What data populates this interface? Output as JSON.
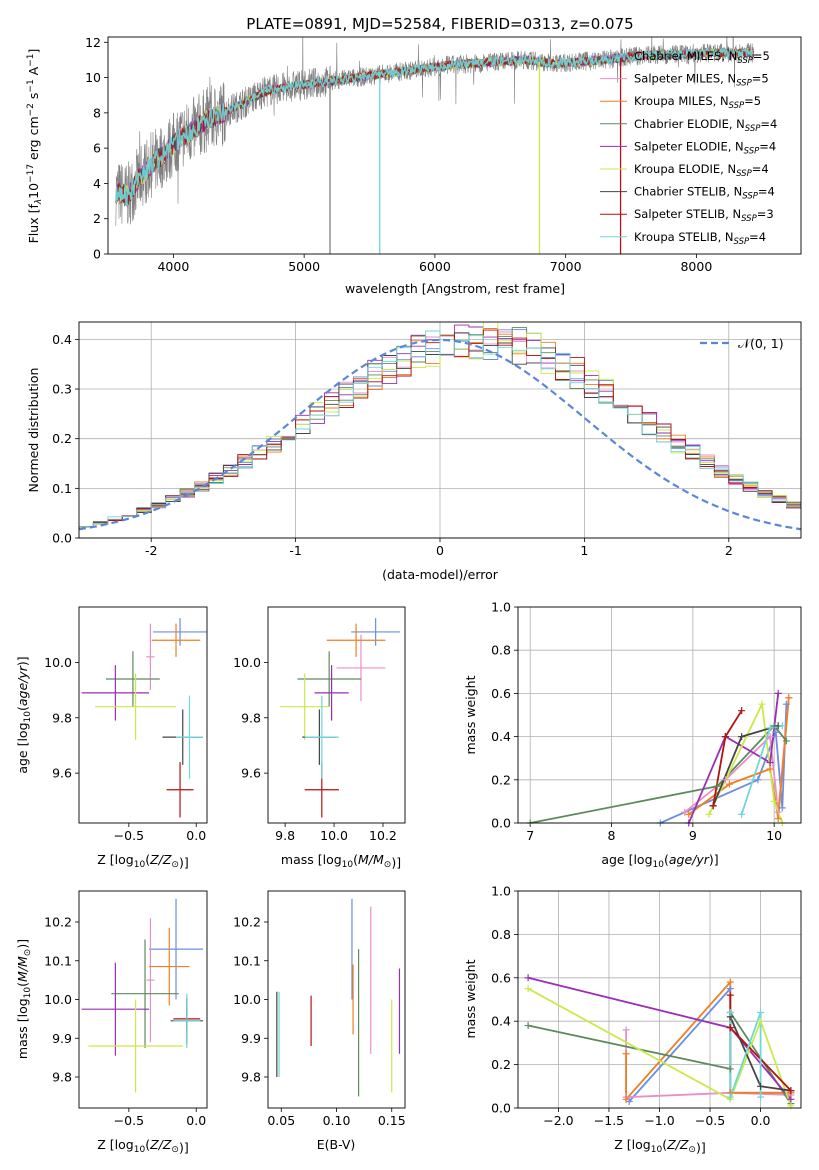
{
  "figure": {
    "title": "PLATE=0891, MJD=52584, FIBERID=0313, z=0.075"
  },
  "colors": {
    "chabrier_miles": "#6b8ee0",
    "salpeter_miles": "#e98fc8",
    "kroupa_miles": "#ef7f22",
    "chabrier_elodie": "#5e8a5e",
    "salpeter_elodie": "#9a2fb5",
    "kroupa_elodie": "#c9ea47",
    "chabrier_stelib": "#444444",
    "salpeter_stelib": "#b31212",
    "kroupa_stelib": "#6fd6dc",
    "observed": "#808080",
    "normal": "#5b86d9"
  },
  "chart_data": [
    {
      "type": "line",
      "xlabel": "wavelength [Angstrom, rest frame]",
      "ylabel": "Flux [f_λ10^-17 erg cm^-2 s^-1 A^-1]",
      "xlim": [
        3500,
        8800
      ],
      "ylim": [
        0,
        12.3
      ],
      "xticks": [
        4000,
        5000,
        6000,
        7000,
        8000
      ],
      "yticks": [
        0,
        2,
        4,
        6,
        8,
        10,
        12
      ],
      "grid": false,
      "legend": "top-right",
      "series": [
        {
          "name": "Chabrier MILES, N_SSP=5",
          "label_main": "Chabrier MILES, N",
          "label_sub": "SSP",
          "label_tail": "=5",
          "color_key": "chabrier_miles"
        },
        {
          "name": "Salpeter MILES, N_SSP=5",
          "label_main": "Salpeter MILES, N",
          "label_sub": "SSP",
          "label_tail": "=5",
          "color_key": "salpeter_miles"
        },
        {
          "name": "Kroupa MILES, N_SSP=5",
          "label_main": "Kroupa MILES, N",
          "label_sub": "SSP",
          "label_tail": "=5",
          "color_key": "kroupa_miles"
        },
        {
          "name": "Chabrier ELODIE, N_SSP=4",
          "label_main": "Chabrier ELODIE, N",
          "label_sub": "SSP",
          "label_tail": "=4",
          "color_key": "chabrier_elodie"
        },
        {
          "name": "Salpeter ELODIE, N_SSP=4",
          "label_main": "Salpeter ELODIE, N",
          "label_sub": "SSP",
          "label_tail": "=4",
          "color_key": "salpeter_elodie"
        },
        {
          "name": "Kroupa ELODIE, N_SSP=4",
          "label_main": "Kroupa ELODIE, N",
          "label_sub": "SSP",
          "label_tail": "=4",
          "color_key": "kroupa_elodie"
        },
        {
          "name": "Chabrier STELIB, N_SSP=4",
          "label_main": "Chabrier STELIB, N",
          "label_sub": "SSP",
          "label_tail": "=4",
          "color_key": "chabrier_stelib"
        },
        {
          "name": "Salpeter STELIB, N_SSP=3",
          "label_main": "Salpeter STELIB, N",
          "label_sub": "SSP",
          "label_tail": "=3",
          "color_key": "salpeter_stelib"
        },
        {
          "name": "Kroupa STELIB, N_SSP=4",
          "label_main": "Kroupa STELIB, N",
          "label_sub": "SSP",
          "label_tail": "=4",
          "color_key": "kroupa_stelib"
        }
      ],
      "continuum_x": [
        3560,
        3650,
        3750,
        3850,
        3950,
        4050,
        4150,
        4250,
        4350,
        4500,
        4700,
        4900,
        5100,
        5300,
        5500,
        5700,
        5900,
        6100,
        6300,
        6500,
        6700,
        6900,
        7100,
        7300,
        7500,
        7700,
        7900,
        8100,
        8300,
        8440
      ],
      "continuum_y": [
        3.5,
        3.3,
        4.4,
        5.2,
        5.8,
        6.6,
        7.0,
        7.6,
        7.9,
        8.4,
        9.2,
        9.5,
        9.7,
        9.9,
        10.1,
        10.3,
        10.5,
        10.7,
        10.8,
        10.9,
        11.0,
        10.8,
        10.9,
        11.0,
        11.2,
        11.3,
        11.3,
        11.4,
        11.4,
        11.4
      ]
    },
    {
      "type": "line",
      "xlabel": "(data-model)/error",
      "ylabel": "Normed distribution",
      "xlim": [
        -2.5,
        2.5
      ],
      "ylim": [
        0,
        0.435
      ],
      "xticks": [
        -2,
        -1,
        0,
        1,
        2
      ],
      "yticks": [
        0.0,
        0.1,
        0.2,
        0.3,
        0.4
      ],
      "grid": true,
      "legend": "top-right",
      "legend_label": "𝒩(0, 1)",
      "bin_width": 0.1,
      "base_density": [
        0.025,
        0.031,
        0.039,
        0.047,
        0.056,
        0.066,
        0.078,
        0.091,
        0.105,
        0.12,
        0.136,
        0.153,
        0.171,
        0.19,
        0.209,
        0.229,
        0.25,
        0.27,
        0.29,
        0.309,
        0.328,
        0.345,
        0.36,
        0.373,
        0.384,
        0.392,
        0.397,
        0.399,
        0.398,
        0.394,
        0.386,
        0.376,
        0.363,
        0.348,
        0.331,
        0.313,
        0.294,
        0.273,
        0.252,
        0.231,
        0.211,
        0.19,
        0.171,
        0.153,
        0.135,
        0.119,
        0.104,
        0.09,
        0.078,
        0.066
      ]
    },
    {
      "type": "scatter",
      "xlabel": "Z [log10(Z/Z⊙)]",
      "ylabel": "age [log10(age/yr)]",
      "xlim": [
        -0.87,
        0.08
      ],
      "ylim": [
        9.42,
        10.2
      ],
      "xticks": [
        -0.5,
        0.0
      ],
      "yticks": [
        9.6,
        9.8,
        10.0
      ],
      "grid": false,
      "points": [
        {
          "x": -0.12,
          "xerr": 0.2,
          "y": 10.11,
          "yerr": 0.05,
          "color_key": "chabrier_miles"
        },
        {
          "x": -0.34,
          "xerr": 0.03,
          "y": 10.02,
          "yerr": 0.12,
          "color_key": "salpeter_miles"
        },
        {
          "x": -0.15,
          "xerr": 0.18,
          "y": 10.08,
          "yerr": 0.06,
          "color_key": "kroupa_miles"
        },
        {
          "x": -0.47,
          "xerr": 0.2,
          "y": 9.94,
          "yerr": 0.1,
          "color_key": "chabrier_elodie"
        },
        {
          "x": -0.6,
          "xerr": 0.25,
          "y": 9.89,
          "yerr": 0.1,
          "color_key": "salpeter_elodie"
        },
        {
          "x": -0.45,
          "xerr": 0.3,
          "y": 9.84,
          "yerr": 0.12,
          "color_key": "kroupa_elodie"
        },
        {
          "x": -0.1,
          "xerr": 0.15,
          "y": 9.73,
          "yerr": 0.1,
          "color_key": "chabrier_stelib"
        },
        {
          "x": -0.12,
          "xerr": 0.1,
          "y": 9.54,
          "yerr": 0.1,
          "color_key": "salpeter_stelib"
        },
        {
          "x": -0.05,
          "xerr": 0.1,
          "y": 9.73,
          "yerr": 0.15,
          "color_key": "kroupa_stelib"
        }
      ]
    },
    {
      "type": "scatter",
      "xlabel": "mass [log10(M/M⊙)]",
      "ylabel": "",
      "xlim": [
        9.73,
        10.29
      ],
      "ylim": [
        9.42,
        10.2
      ],
      "xticks": [
        9.8,
        10.0,
        10.2
      ],
      "yticks": [
        9.6,
        9.8,
        10.0
      ],
      "grid": false,
      "points": [
        {
          "x": 10.17,
          "xerr": 0.1,
          "y": 10.11,
          "yerr": 0.05,
          "color_key": "chabrier_miles"
        },
        {
          "x": 10.11,
          "xerr": 0.1,
          "y": 9.98,
          "yerr": 0.12,
          "color_key": "salpeter_miles"
        },
        {
          "x": 10.09,
          "xerr": 0.12,
          "y": 10.08,
          "yerr": 0.06,
          "color_key": "kroupa_miles"
        },
        {
          "x": 9.98,
          "xerr": 0.13,
          "y": 9.94,
          "yerr": 0.1,
          "color_key": "chabrier_elodie"
        },
        {
          "x": 9.99,
          "xerr": 0.07,
          "y": 9.89,
          "yerr": 0.1,
          "color_key": "salpeter_elodie"
        },
        {
          "x": 9.88,
          "xerr": 0.1,
          "y": 9.84,
          "yerr": 0.12,
          "color_key": "kroupa_elodie"
        },
        {
          "x": 9.94,
          "xerr": 0.07,
          "y": 9.73,
          "yerr": 0.1,
          "color_key": "chabrier_stelib"
        },
        {
          "x": 9.95,
          "xerr": 0.07,
          "y": 9.54,
          "yerr": 0.1,
          "color_key": "salpeter_stelib"
        },
        {
          "x": 9.95,
          "xerr": 0.07,
          "y": 9.73,
          "yerr": 0.15,
          "color_key": "kroupa_stelib"
        }
      ]
    },
    {
      "type": "line",
      "xlabel": "age [log10(age/yr)]",
      "ylabel": "mass weight",
      "xlim": [
        6.85,
        10.33
      ],
      "ylim": [
        0,
        1.0
      ],
      "xticks": [
        7,
        8,
        9,
        10
      ],
      "yticks": [
        0.0,
        0.2,
        0.4,
        0.6,
        0.8,
        1.0
      ],
      "grid": true,
      "series": [
        {
          "color_key": "chabrier_miles",
          "x": [
            8.6,
            9.8,
            10.02,
            10.1,
            10.15
          ],
          "y": [
            0.0,
            0.2,
            0.42,
            0.07,
            0.55
          ]
        },
        {
          "color_key": "salpeter_miles",
          "x": [
            8.9,
            9.4,
            9.95,
            10.05,
            10.18
          ],
          "y": [
            0.05,
            0.2,
            0.4,
            0.05,
            0.58
          ]
        },
        {
          "color_key": "kroupa_miles",
          "x": [
            8.95,
            9.45,
            9.95,
            10.05,
            10.18
          ],
          "y": [
            0.04,
            0.18,
            0.25,
            0.02,
            0.58
          ]
        },
        {
          "color_key": "chabrier_elodie",
          "x": [
            7.0,
            9.3,
            10.0,
            10.15
          ],
          "y": [
            0.0,
            0.17,
            0.45,
            0.38
          ]
        },
        {
          "color_key": "salpeter_elodie",
          "x": [
            8.95,
            9.4,
            9.95,
            10.05
          ],
          "y": [
            0.0,
            0.4,
            0.28,
            0.6
          ]
        },
        {
          "color_key": "kroupa_elodie",
          "x": [
            9.2,
            9.85,
            10.0,
            10.1
          ],
          "y": [
            0.04,
            0.55,
            0.1,
            0.0
          ]
        },
        {
          "color_key": "chabrier_stelib",
          "x": [
            9.25,
            9.6,
            10.05
          ],
          "y": [
            0.08,
            0.4,
            0.45
          ]
        },
        {
          "color_key": "salpeter_stelib",
          "x": [
            9.25,
            9.4,
            9.6
          ],
          "y": [
            0.08,
            0.4,
            0.52
          ]
        },
        {
          "color_key": "kroupa_stelib",
          "x": [
            9.6,
            9.95,
            10.1
          ],
          "y": [
            0.04,
            0.44,
            0.45
          ]
        }
      ]
    },
    {
      "type": "scatter",
      "xlabel": "Z [log10(Z/Z⊙)]",
      "ylabel": "mass [log10(M/M⊙)]",
      "xlim": [
        -0.87,
        0.08
      ],
      "ylim": [
        9.72,
        10.28
      ],
      "xticks": [
        -0.5,
        0.0
      ],
      "yticks": [
        9.8,
        9.9,
        10.0,
        10.1,
        10.2
      ],
      "grid": false,
      "points": [
        {
          "x": -0.15,
          "xerr": 0.2,
          "y": 10.13,
          "yerr": 0.13,
          "color_key": "chabrier_miles"
        },
        {
          "x": -0.34,
          "xerr": 0.03,
          "y": 10.05,
          "yerr": 0.16,
          "color_key": "salpeter_miles"
        },
        {
          "x": -0.2,
          "xerr": 0.15,
          "y": 10.085,
          "yerr": 0.1,
          "color_key": "kroupa_miles"
        },
        {
          "x": -0.38,
          "xerr": 0.25,
          "y": 10.015,
          "yerr": 0.14,
          "color_key": "chabrier_elodie"
        },
        {
          "x": -0.6,
          "xerr": 0.25,
          "y": 9.975,
          "yerr": 0.12,
          "color_key": "salpeter_elodie"
        },
        {
          "x": -0.45,
          "xerr": 0.35,
          "y": 9.88,
          "yerr": 0.12,
          "color_key": "kroupa_elodie"
        },
        {
          "x": -0.07,
          "xerr": 0.12,
          "y": 9.945,
          "yerr": 0.06,
          "color_key": "chabrier_stelib"
        },
        {
          "x": -0.07,
          "xerr": 0.1,
          "y": 9.95,
          "yerr": 0.03,
          "color_key": "salpeter_stelib"
        },
        {
          "x": -0.07,
          "xerr": 0.1,
          "y": 9.945,
          "yerr": 0.07,
          "color_key": "kroupa_stelib"
        }
      ]
    },
    {
      "type": "scatter",
      "xlabel": "E(B-V)",
      "ylabel": "",
      "xlim": [
        0.038,
        0.162
      ],
      "ylim": [
        9.72,
        10.28
      ],
      "xticks": [
        0.05,
        0.1,
        0.15
      ],
      "yticks": [
        9.8,
        9.9,
        10.0,
        10.1,
        10.2
      ],
      "grid": false,
      "points": [
        {
          "x": 0.114,
          "y": 10.13,
          "yerr": 0.13,
          "color_key": "chabrier_miles"
        },
        {
          "x": 0.131,
          "y": 10.05,
          "yerr": 0.19,
          "color_key": "salpeter_miles"
        },
        {
          "x": 0.115,
          "y": 10.0,
          "yerr": 0.09,
          "color_key": "kroupa_miles"
        },
        {
          "x": 0.12,
          "y": 9.94,
          "yerr": 0.19,
          "color_key": "chabrier_elodie"
        },
        {
          "x": 0.157,
          "y": 9.97,
          "yerr": 0.11,
          "color_key": "salpeter_elodie"
        },
        {
          "x": 0.15,
          "y": 9.88,
          "yerr": 0.12,
          "color_key": "kroupa_elodie"
        },
        {
          "x": 0.046,
          "y": 9.91,
          "yerr": 0.11,
          "color_key": "chabrier_stelib"
        },
        {
          "x": 0.077,
          "y": 9.945,
          "yerr": 0.065,
          "color_key": "salpeter_stelib"
        },
        {
          "x": 0.048,
          "y": 9.91,
          "yerr": 0.11,
          "color_key": "kroupa_stelib"
        }
      ]
    },
    {
      "type": "line",
      "xlabel": "Z [log10(Z/Z⊙)]",
      "ylabel": "mass weight",
      "xlim": [
        -2.4,
        0.4
      ],
      "ylim": [
        0,
        1.0
      ],
      "xticks": [
        -2.0,
        -1.5,
        -1.0,
        -0.5,
        0.0
      ],
      "yticks": [
        0.0,
        0.2,
        0.4,
        0.6,
        0.8,
        1.0
      ],
      "grid": true,
      "series": [
        {
          "color_key": "chabrier_miles",
          "x": [
            -1.3,
            -0.3,
            -0.3,
            0.3
          ],
          "y": [
            0.03,
            0.55,
            0.07,
            0.07
          ]
        },
        {
          "color_key": "salpeter_miles",
          "x": [
            -1.33,
            -1.33,
            -0.3,
            0.3
          ],
          "y": [
            0.36,
            0.05,
            0.07,
            0.06
          ]
        },
        {
          "color_key": "kroupa_miles",
          "x": [
            -1.33,
            -1.33,
            -0.3,
            -0.3,
            0.3
          ],
          "y": [
            0.25,
            0.04,
            0.58,
            0.07,
            0.07
          ]
        },
        {
          "color_key": "chabrier_elodie",
          "x": [
            -2.3,
            -0.3,
            -0.3,
            0.3
          ],
          "y": [
            0.38,
            0.18,
            0.44,
            0.02
          ]
        },
        {
          "color_key": "salpeter_elodie",
          "x": [
            -2.3,
            -0.3,
            0.3
          ],
          "y": [
            0.6,
            0.37,
            0.04
          ]
        },
        {
          "color_key": "kroupa_elodie",
          "x": [
            -2.3,
            -0.3,
            0.0,
            0.3
          ],
          "y": [
            0.55,
            0.04,
            0.4,
            0.01
          ]
        },
        {
          "color_key": "chabrier_stelib",
          "x": [
            -0.3,
            0.0,
            0.3
          ],
          "y": [
            0.42,
            0.1,
            0.08
          ]
        },
        {
          "color_key": "salpeter_stelib",
          "x": [
            -0.3,
            -0.3,
            0.3
          ],
          "y": [
            0.52,
            0.37,
            0.08
          ]
        },
        {
          "color_key": "kroupa_stelib",
          "x": [
            -0.3,
            -0.3,
            0.0,
            0.0
          ],
          "y": [
            0.44,
            0.05,
            0.44,
            0.05
          ]
        }
      ]
    }
  ]
}
